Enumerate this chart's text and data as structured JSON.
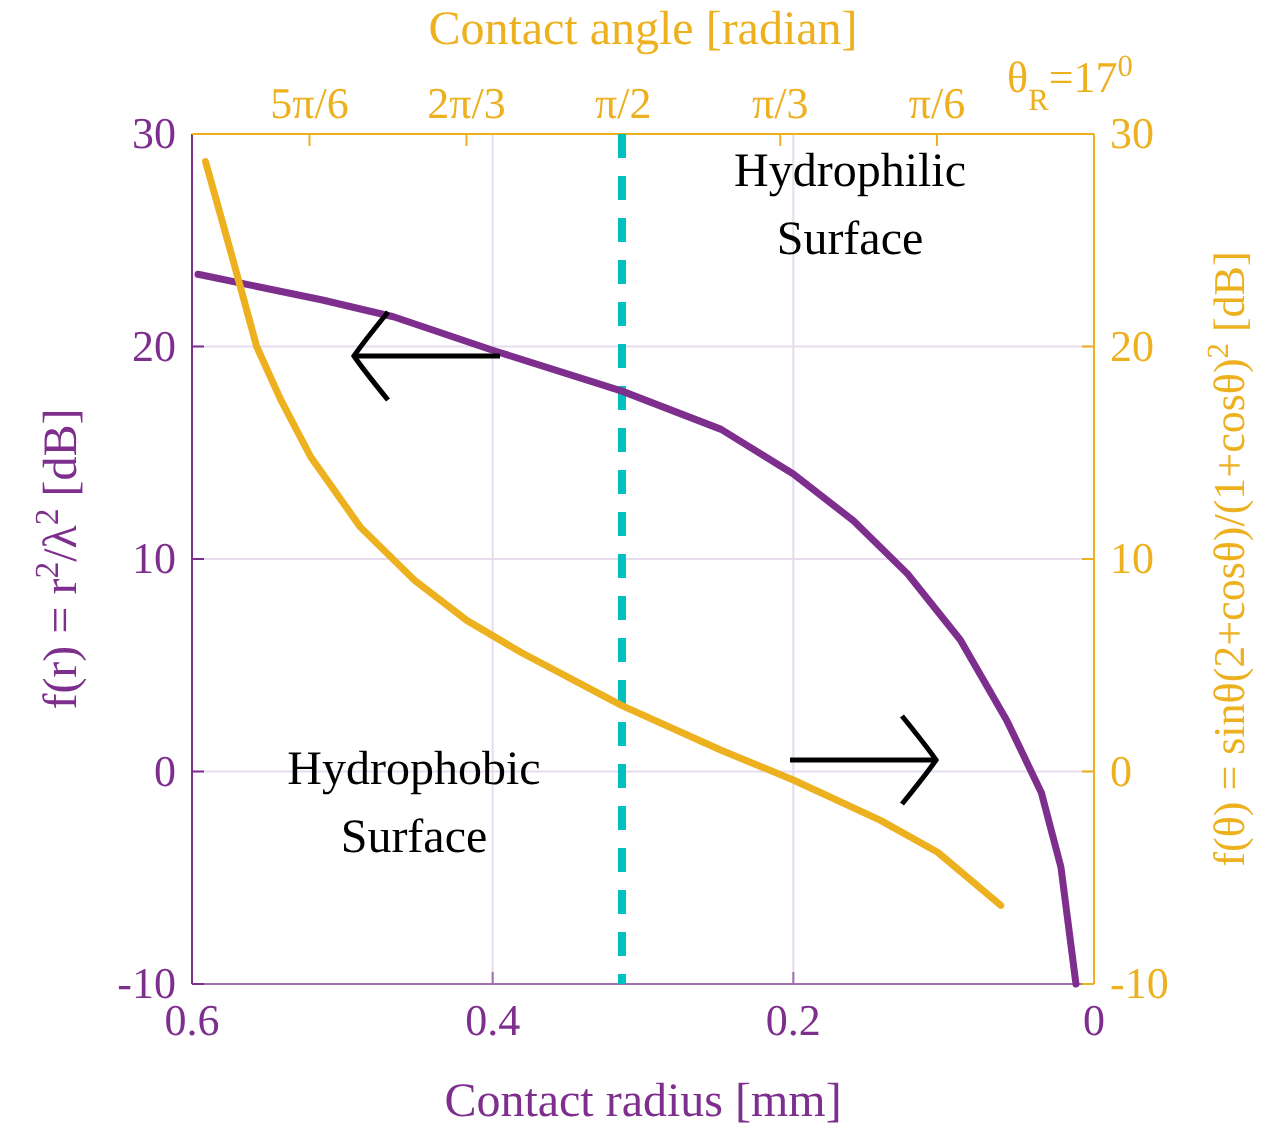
{
  "chart_data": {
    "type": "line",
    "xlabel": "Contact radius [mm]",
    "ylabel": "f(r) = r$^{2}$/λ$^{2}$ [dB]",
    "y2label": "f(θ) = sinθ(2+cosθ)/(1+cosθ)$^{2}$ [dB]",
    "x2label": "Contact angle [radian]",
    "xlim": [
      0.6,
      0
    ],
    "xticks": [
      0.6,
      0.4,
      0.2,
      0
    ],
    "x2lim": [
      3.01,
      0
    ],
    "x2ticks": [
      {
        "value": 2.618,
        "label": "5π/6"
      },
      {
        "value": 2.094,
        "label": "2π/3"
      },
      {
        "value": 1.571,
        "label": "π/2"
      },
      {
        "value": 1.047,
        "label": "π/3"
      },
      {
        "value": 0.524,
        "label": "π/6"
      }
    ],
    "ylim": [
      -10,
      30
    ],
    "yticks": [
      -10,
      0,
      10,
      20,
      30
    ],
    "y2lim": [
      -10,
      30
    ],
    "y2ticks": [
      -10,
      0,
      10,
      20,
      30
    ],
    "grid": true,
    "line_style": "solid",
    "marker": "none",
    "series": [
      {
        "color": "#7e2f8e",
        "x": [
          0.596,
          0.514,
          0.466,
          0.399,
          0.314,
          0.248,
          0.2,
          0.16,
          0.124,
          0.089,
          0.058,
          0.035,
          0.022,
          0.012
        ],
        "values": [
          23.4,
          22.2,
          21.4,
          19.8,
          17.9,
          16.1,
          14.0,
          11.8,
          9.3,
          6.2,
          2.4,
          -1.0,
          -4.5,
          -10.0
        ]
      },
      {
        "color": "#edb120",
        "axis": "y2",
        "x": [
          0.591,
          0.574,
          0.557,
          0.541,
          0.521,
          0.488,
          0.452,
          0.417,
          0.381,
          0.314,
          0.248,
          0.2,
          0.142,
          0.104,
          0.062
        ],
        "values": [
          28.7,
          24.4,
          20.0,
          17.5,
          14.8,
          11.5,
          9.0,
          7.1,
          5.6,
          3.1,
          1.0,
          -0.4,
          -2.3,
          -3.8,
          -6.3
        ]
      }
    ],
    "ref_lines": [
      {
        "axis": "x",
        "value": 0.314,
        "color": "#00bfbf",
        "line_style": "dashed"
      }
    ],
    "annotations": [
      "Hydrophilic\nSurface",
      "Hydrophobic\nSurface",
      "θ$_{R}$=17$^{0}$"
    ]
  }
}
